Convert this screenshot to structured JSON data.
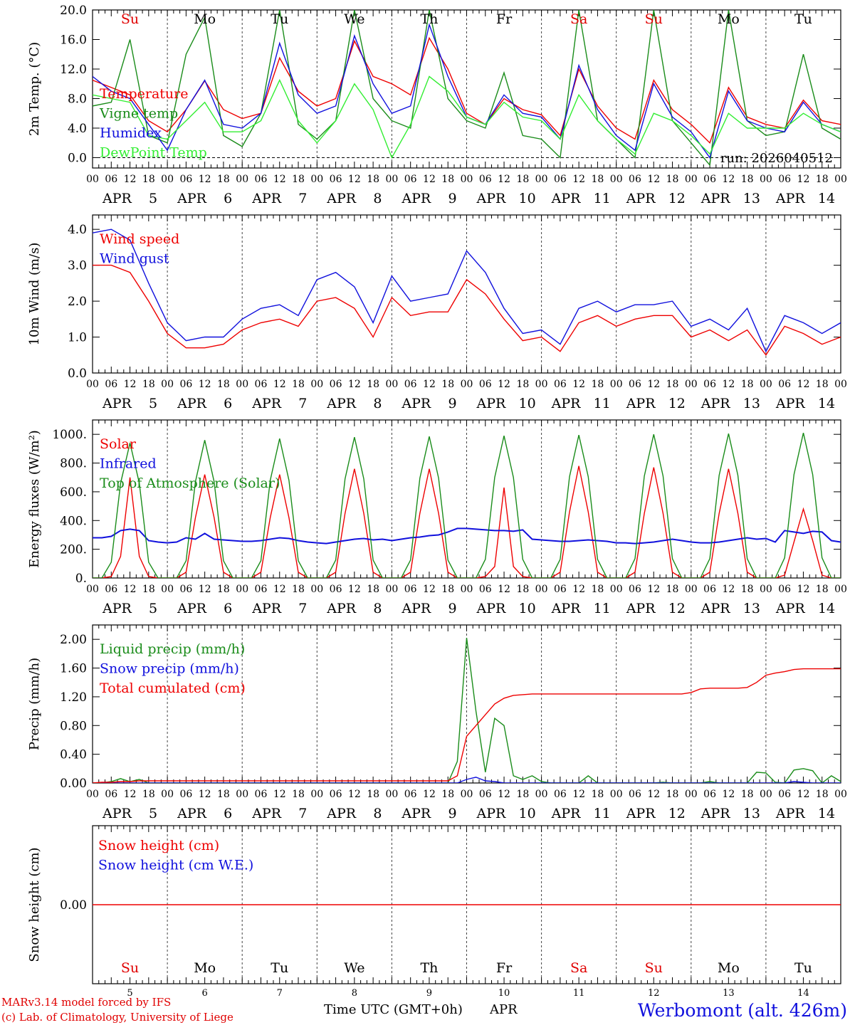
{
  "header": {
    "model_note": "MARv3.14 model forced by IFS",
    "credit": "(c) Lab. of Climatology, University of Liege",
    "x_title": "Time UTC (GMT+0h)",
    "x_month": "APR",
    "station": "Werbomont (alt. 426m)",
    "run": "run: 2026040512"
  },
  "time_axis": {
    "hours_per_day": [
      0,
      6,
      12,
      18
    ],
    "hour_labels": [
      "00",
      "06",
      "12",
      "18"
    ],
    "end_label": "00",
    "dates": [
      "5",
      "6",
      "7",
      "8",
      "9",
      "10",
      "11",
      "12",
      "13",
      "14"
    ],
    "month": "APR",
    "weekdays": [
      "Su",
      "Mo",
      "Tu",
      "We",
      "Th",
      "Fr",
      "Sa",
      "Su",
      "Mo",
      "Tu"
    ],
    "weekend": [
      true,
      false,
      false,
      false,
      false,
      false,
      true,
      true,
      false,
      false
    ]
  },
  "colors": {
    "red": "#ee0000",
    "green": "#1a8c1a",
    "blue": "#1010dd",
    "lightgreen": "#33ee33",
    "weekend": "#e00000",
    "grid": "#444444"
  },
  "chart_data": [
    {
      "type": "line",
      "ylabel": "2m Temp. (°C)",
      "ylim": [
        -1.4,
        20
      ],
      "yticks": [
        0,
        4,
        8,
        12,
        16,
        20
      ],
      "yticklabels": [
        "0.0",
        "4.0",
        "8.0",
        "12.0",
        "16.0",
        "20.0"
      ],
      "zero_line": true,
      "x_hours": [
        0,
        6,
        12,
        18,
        24,
        30,
        36,
        42,
        48,
        54,
        60,
        66,
        72,
        78,
        84,
        90,
        96,
        102,
        108,
        114,
        120,
        126,
        132,
        138,
        144,
        150,
        156,
        162,
        168,
        174,
        180,
        186,
        192,
        198,
        204,
        210,
        216,
        222,
        228,
        234,
        240
      ],
      "series": [
        {
          "name": "Temperature",
          "color": "#ee0000",
          "values": [
            10.5,
            9.5,
            8.5,
            5.0,
            3.5,
            6.5,
            10.4,
            6.5,
            5.3,
            6.0,
            13.5,
            9.0,
            7.0,
            8.0,
            15.8,
            11.0,
            10.0,
            8.5,
            16.2,
            12.0,
            6.0,
            4.5,
            8.0,
            6.5,
            5.8,
            3.0,
            12.0,
            7.0,
            4.0,
            2.5,
            10.5,
            6.5,
            4.5,
            2.0,
            9.5,
            5.5,
            4.5,
            4.0,
            7.8,
            5.0,
            4.5
          ]
        },
        {
          "name": "Vigne temp",
          "color": "#1a8c1a",
          "values": [
            7.0,
            7.5,
            16.0,
            3.0,
            2.0,
            14.0,
            19.0,
            3.0,
            1.5,
            6.0,
            20.0,
            4.5,
            2.5,
            5.0,
            20.0,
            8.0,
            5.0,
            4.0,
            20.0,
            8.0,
            5.0,
            4.0,
            11.5,
            3.0,
            2.5,
            0.0,
            20.0,
            5.0,
            2.5,
            0.0,
            20.0,
            5.0,
            2.0,
            -1.0,
            20.0,
            5.0,
            3.0,
            3.5,
            14.0,
            4.0,
            2.5
          ]
        },
        {
          "name": "Humidex",
          "color": "#1010dd",
          "values": [
            11.0,
            9.0,
            8.0,
            4.5,
            1.0,
            6.5,
            10.5,
            4.5,
            4.0,
            6.0,
            15.5,
            8.5,
            6.0,
            7.0,
            16.5,
            10.0,
            6.0,
            7.0,
            18.0,
            11.0,
            5.5,
            4.5,
            8.5,
            6.0,
            5.5,
            2.5,
            12.5,
            6.5,
            3.0,
            1.0,
            10.0,
            5.5,
            3.5,
            0.0,
            9.0,
            5.0,
            4.0,
            3.5,
            7.5,
            4.5,
            3.5
          ]
        },
        {
          "name": "DewPoint Temp",
          "color": "#33ee33",
          "values": [
            8.5,
            8.0,
            7.5,
            3.0,
            2.5,
            5.0,
            7.5,
            3.5,
            3.5,
            5.0,
            10.5,
            5.0,
            2.0,
            5.0,
            10.0,
            6.5,
            0.0,
            4.5,
            11.0,
            9.0,
            5.5,
            4.5,
            7.5,
            5.5,
            5.0,
            2.5,
            8.5,
            5.0,
            2.5,
            0.5,
            6.0,
            5.0,
            3.0,
            0.5,
            6.0,
            4.0,
            4.0,
            4.0,
            6.0,
            4.5,
            3.5
          ]
        }
      ]
    },
    {
      "type": "line",
      "ylabel": "10m Wind (m/s)",
      "ylim": [
        0,
        4.4
      ],
      "yticks": [
        0,
        1,
        2,
        3,
        4
      ],
      "yticklabels": [
        "0.0",
        "1.0",
        "2.0",
        "3.0",
        "4.0"
      ],
      "x_hours": [
        0,
        6,
        12,
        18,
        24,
        30,
        36,
        42,
        48,
        54,
        60,
        66,
        72,
        78,
        84,
        90,
        96,
        102,
        108,
        114,
        120,
        126,
        132,
        138,
        144,
        150,
        156,
        162,
        168,
        174,
        180,
        186,
        192,
        198,
        204,
        210,
        216,
        222,
        228,
        234,
        240
      ],
      "series": [
        {
          "name": "Wind speed",
          "color": "#ee0000",
          "values": [
            3.0,
            3.0,
            2.8,
            2.0,
            1.1,
            0.7,
            0.7,
            0.8,
            1.2,
            1.4,
            1.5,
            1.3,
            2.0,
            2.1,
            1.8,
            1.0,
            2.1,
            1.6,
            1.7,
            1.7,
            2.6,
            2.2,
            1.5,
            0.9,
            1.0,
            0.6,
            1.4,
            1.6,
            1.3,
            1.5,
            1.6,
            1.6,
            1.0,
            1.2,
            0.9,
            1.2,
            0.5,
            1.3,
            1.1,
            0.8,
            1.0
          ]
        },
        {
          "name": "Wind gust",
          "color": "#1010dd",
          "values": [
            3.9,
            4.0,
            3.7,
            2.5,
            1.4,
            0.9,
            1.0,
            1.0,
            1.5,
            1.8,
            1.9,
            1.6,
            2.6,
            2.8,
            2.4,
            1.4,
            2.7,
            2.0,
            2.1,
            2.2,
            3.4,
            2.8,
            1.8,
            1.1,
            1.2,
            0.8,
            1.8,
            2.0,
            1.7,
            1.9,
            1.9,
            2.0,
            1.3,
            1.5,
            1.2,
            1.8,
            0.6,
            1.6,
            1.4,
            1.1,
            1.4
          ]
        }
      ]
    },
    {
      "type": "line",
      "ylabel": "Energy fluxes (W/m²)",
      "ylim": [
        0,
        1100
      ],
      "yticks": [
        0,
        200,
        400,
        600,
        800,
        1000
      ],
      "yticklabels": [
        "0.",
        "200.",
        "400.",
        "600.",
        "800.",
        "1000."
      ],
      "x_hours": [
        0,
        3,
        6,
        9,
        12,
        15,
        18,
        21,
        24,
        27,
        30,
        33,
        36,
        39,
        42,
        45,
        48,
        51,
        54,
        57,
        60,
        63,
        66,
        69,
        72,
        75,
        78,
        81,
        84,
        87,
        90,
        93,
        96,
        99,
        102,
        105,
        108,
        111,
        114,
        117,
        120,
        123,
        126,
        129,
        132,
        135,
        138,
        141,
        144,
        147,
        150,
        153,
        156,
        159,
        162,
        165,
        168,
        171,
        174,
        177,
        180,
        183,
        186,
        189,
        192,
        195,
        198,
        201,
        204,
        207,
        210,
        213,
        216,
        219,
        222,
        225,
        228,
        231,
        234,
        237,
        240
      ],
      "series": [
        {
          "name": "Solar",
          "color": "#ee0000",
          "values": [
            0,
            0,
            10,
            150,
            700,
            150,
            10,
            0,
            0,
            0,
            40,
            420,
            720,
            420,
            40,
            0,
            0,
            0,
            40,
            420,
            720,
            420,
            40,
            0,
            0,
            0,
            40,
            450,
            760,
            450,
            40,
            0,
            0,
            0,
            40,
            450,
            760,
            450,
            40,
            0,
            0,
            0,
            10,
            80,
            630,
            80,
            10,
            0,
            0,
            0,
            40,
            460,
            780,
            460,
            40,
            0,
            0,
            0,
            40,
            450,
            770,
            450,
            40,
            0,
            0,
            0,
            40,
            450,
            760,
            450,
            40,
            0,
            0,
            0,
            20,
            250,
            480,
            260,
            20,
            0,
            0
          ]
        },
        {
          "name": "Infrared",
          "color": "#1010dd",
          "values": [
            280,
            280,
            290,
            330,
            340,
            330,
            260,
            250,
            245,
            250,
            280,
            270,
            310,
            270,
            265,
            260,
            255,
            255,
            260,
            270,
            280,
            275,
            260,
            250,
            245,
            240,
            250,
            260,
            270,
            275,
            265,
            270,
            260,
            270,
            280,
            285,
            295,
            300,
            320,
            345,
            345,
            340,
            335,
            330,
            330,
            325,
            335,
            270,
            265,
            260,
            255,
            255,
            260,
            265,
            260,
            255,
            245,
            245,
            240,
            245,
            250,
            260,
            270,
            260,
            250,
            245,
            245,
            250,
            260,
            270,
            280,
            270,
            275,
            250,
            330,
            320,
            310,
            325,
            320,
            260,
            250
          ]
        },
        {
          "name": "Top of Atmosphere (Solar)",
          "color": "#1a8c1a",
          "values": [
            0,
            0,
            110,
            660,
            940,
            660,
            110,
            0,
            0,
            0,
            120,
            670,
            960,
            670,
            120,
            0,
            0,
            0,
            120,
            680,
            970,
            680,
            120,
            0,
            0,
            0,
            125,
            690,
            980,
            690,
            125,
            0,
            0,
            0,
            125,
            695,
            985,
            695,
            125,
            0,
            0,
            0,
            130,
            700,
            990,
            700,
            130,
            0,
            0,
            0,
            130,
            705,
            995,
            705,
            130,
            0,
            0,
            0,
            135,
            710,
            1000,
            710,
            135,
            0,
            0,
            0,
            135,
            715,
            1005,
            715,
            135,
            0,
            0,
            0,
            140,
            720,
            1010,
            720,
            140,
            0,
            0
          ]
        }
      ]
    },
    {
      "type": "line",
      "ylabel": "Precip (mm/h)",
      "ylim": [
        0,
        2.2
      ],
      "yticks": [
        0,
        0.4,
        0.8,
        1.2,
        1.6,
        2.0
      ],
      "yticklabels": [
        "0.00",
        "0.40",
        "0.80",
        "1.20",
        "1.60",
        "2.00"
      ],
      "x_hours": [
        0,
        3,
        6,
        9,
        12,
        15,
        18,
        21,
        24,
        27,
        30,
        33,
        36,
        39,
        42,
        45,
        48,
        51,
        54,
        57,
        60,
        63,
        66,
        69,
        72,
        75,
        78,
        81,
        84,
        87,
        90,
        93,
        96,
        99,
        102,
        105,
        108,
        111,
        114,
        117,
        120,
        123,
        126,
        129,
        132,
        135,
        138,
        141,
        144,
        147,
        150,
        153,
        156,
        159,
        162,
        165,
        168,
        171,
        174,
        177,
        180,
        183,
        186,
        189,
        192,
        195,
        198,
        201,
        204,
        207,
        210,
        213,
        216,
        219,
        222,
        225,
        228,
        231,
        234,
        237,
        240
      ],
      "series": [
        {
          "name": "Liquid precip (mm/h)",
          "color": "#1a8c1a",
          "values": [
            0,
            0,
            0.02,
            0.06,
            0.02,
            0.05,
            0,
            0,
            0,
            0,
            0,
            0,
            0,
            0,
            0,
            0,
            0,
            0,
            0,
            0,
            0,
            0,
            0,
            0,
            0,
            0,
            0,
            0,
            0,
            0,
            0,
            0,
            0,
            0,
            0,
            0,
            0,
            0,
            0,
            0.3,
            2.02,
            1.0,
            0.15,
            0.9,
            0.8,
            0.1,
            0.05,
            0.1,
            0.02,
            0,
            0,
            0,
            0,
            0.1,
            0,
            0,
            0,
            0,
            0,
            0,
            0,
            0.01,
            0,
            0,
            0,
            0,
            0.02,
            0,
            0,
            0,
            0,
            0.15,
            0.14,
            0.01,
            0,
            0.18,
            0.2,
            0.17,
            0,
            0.1,
            0.02
          ]
        },
        {
          "name": "Snow precip (mm/h)",
          "color": "#1010dd",
          "values": [
            0,
            0,
            0,
            0,
            0,
            0,
            0,
            0,
            0,
            0,
            0,
            0,
            0,
            0,
            0,
            0,
            0,
            0,
            0,
            0,
            0,
            0,
            0,
            0,
            0,
            0,
            0,
            0,
            0,
            0,
            0,
            0,
            0,
            0,
            0,
            0,
            0,
            0,
            0,
            0,
            0.05,
            0.08,
            0.03,
            0.02,
            0,
            0,
            0,
            0,
            0,
            0,
            0,
            0,
            0,
            0,
            0,
            0,
            0,
            0,
            0,
            0,
            0,
            0,
            0,
            0,
            0,
            0,
            0,
            0,
            0,
            0,
            0,
            0,
            0,
            0,
            0,
            0.02,
            0.01,
            0,
            0,
            0,
            0
          ]
        },
        {
          "name": "Total cumulated (cm)",
          "color": "#ee0000",
          "values": [
            0,
            0.01,
            0.01,
            0.02,
            0.02,
            0.03,
            0.03,
            0.03,
            0.03,
            0.03,
            0.03,
            0.03,
            0.03,
            0.03,
            0.03,
            0.03,
            0.03,
            0.03,
            0.03,
            0.03,
            0.03,
            0.03,
            0.03,
            0.03,
            0.03,
            0.03,
            0.03,
            0.03,
            0.03,
            0.03,
            0.03,
            0.03,
            0.03,
            0.03,
            0.03,
            0.03,
            0.03,
            0.03,
            0.03,
            0.1,
            0.65,
            0.8,
            0.95,
            1.1,
            1.18,
            1.22,
            1.23,
            1.24,
            1.24,
            1.24,
            1.24,
            1.24,
            1.24,
            1.24,
            1.24,
            1.24,
            1.24,
            1.24,
            1.24,
            1.24,
            1.24,
            1.24,
            1.24,
            1.24,
            1.26,
            1.31,
            1.32,
            1.32,
            1.32,
            1.32,
            1.33,
            1.4,
            1.5,
            1.53,
            1.55,
            1.58,
            1.59,
            1.59,
            1.59,
            1.59,
            1.59
          ]
        }
      ]
    },
    {
      "type": "line",
      "ylabel": "Snow height (cm)",
      "ylim": [
        -1,
        1
      ],
      "yticks": [
        0
      ],
      "yticklabels": [
        "0.00"
      ],
      "x_hours": [
        0,
        240
      ],
      "series": [
        {
          "name": "Snow height (cm)",
          "color": "#ee0000",
          "values": [
            0,
            0
          ]
        },
        {
          "name": "Snow height (cm W.E.)",
          "color": "#1010dd",
          "values": []
        }
      ]
    }
  ]
}
